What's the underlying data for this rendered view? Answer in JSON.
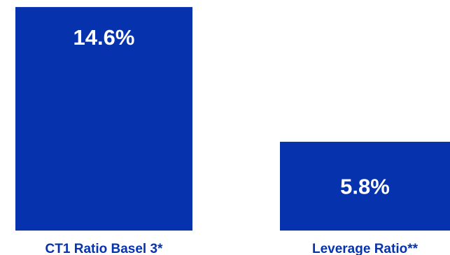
{
  "chart_data": {
    "type": "bar",
    "categories": [
      "CT1 Ratio Basel 3*",
      "Leverage Ratio**"
    ],
    "values": [
      14.6,
      5.8
    ],
    "value_labels": [
      "14.6%",
      "5.8%"
    ],
    "unit": "%",
    "ylim": [
      0,
      15.06
    ],
    "grid": false,
    "legend": "none",
    "bar_color": "#0632AE",
    "label_color": "#0632AE",
    "value_label_color": "#FFFFFF"
  }
}
